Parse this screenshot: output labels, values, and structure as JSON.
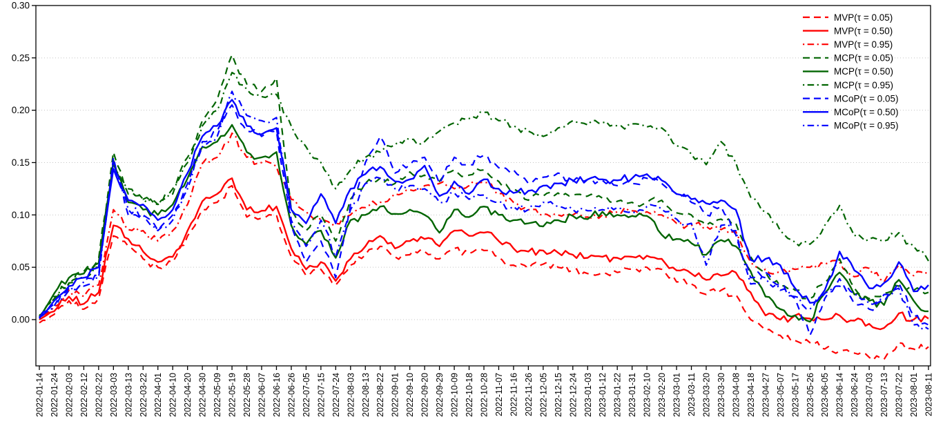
{
  "chart_data": {
    "type": "line",
    "title": "",
    "xlabel": "",
    "ylabel": "",
    "grid": "dotted-horizontal",
    "legend_position": "top-right",
    "ylim": [
      -0.045,
      0.3
    ],
    "y_ticks": [
      "0.00",
      "0.05",
      "0.10",
      "0.15",
      "0.20",
      "0.25",
      "0.30"
    ],
    "y_tick_values": [
      0.0,
      0.05,
      0.1,
      0.15,
      0.2,
      0.25,
      0.3
    ],
    "colors": {
      "mvp": "#FF0000",
      "mcp": "#006400",
      "mcop": "#0000FF",
      "grid": "#c3c3c3",
      "axis": "#000000"
    },
    "x_tick_labels": [
      "2022-01-14",
      "2022-01-24",
      "2022-02-03",
      "2022-02-12",
      "2022-02-22",
      "2022-03-03",
      "2022-03-13",
      "2022-03-22",
      "2022-04-01",
      "2022-04-10",
      "2022-04-20",
      "2022-04-30",
      "2022-05-09",
      "2022-05-19",
      "2022-05-28",
      "2022-06-07",
      "2022-06-16",
      "2022-06-26",
      "2022-07-05",
      "2022-07-15",
      "2022-07-24",
      "2022-08-03",
      "2022-08-13",
      "2022-08-22",
      "2022-09-01",
      "2022-09-10",
      "2022-09-20",
      "2022-09-29",
      "2022-10-09",
      "2022-10-18",
      "2022-10-28",
      "2022-11-07",
      "2022-11-16",
      "2022-11-26",
      "2022-12-05",
      "2022-12-15",
      "2022-12-24",
      "2023-01-03",
      "2023-01-12",
      "2023-01-22",
      "2023-01-31",
      "2023-02-10",
      "2023-02-20",
      "2023-03-01",
      "2023-03-11",
      "2023-03-20",
      "2023-03-30",
      "2023-04-08",
      "2023-04-18",
      "2023-04-27",
      "2023-05-07",
      "2023-05-17",
      "2023-05-26",
      "2023-06-05",
      "2023-06-14",
      "2023-06-24",
      "2023-07-03",
      "2023-07-13",
      "2023-07-22",
      "2023-08-01",
      "2023-08-11"
    ],
    "series": [
      {
        "name": "MVP-0.05",
        "label": "MVP(τ = 0.05)",
        "color": "#FF0000",
        "dash": "dashed",
        "values": [
          -0.003,
          0.005,
          0.018,
          0.01,
          0.02,
          0.08,
          0.07,
          0.058,
          0.05,
          0.055,
          0.08,
          0.105,
          0.112,
          0.128,
          0.098,
          0.097,
          0.1,
          0.06,
          0.042,
          0.048,
          0.033,
          0.052,
          0.062,
          0.07,
          0.06,
          0.062,
          0.065,
          0.058,
          0.068,
          0.063,
          0.066,
          0.06,
          0.052,
          0.049,
          0.053,
          0.05,
          0.047,
          0.044,
          0.045,
          0.045,
          0.048,
          0.05,
          0.048,
          0.036,
          0.034,
          0.024,
          0.028,
          0.024,
          0.0,
          -0.01,
          -0.015,
          -0.02,
          -0.022,
          -0.028,
          -0.03,
          -0.032,
          -0.036,
          -0.038,
          -0.022,
          -0.028,
          -0.026
        ]
      },
      {
        "name": "MVP-0.50",
        "label": "MVP(τ = 0.50)",
        "color": "#FF0000",
        "dash": "solid",
        "values": [
          0.0,
          0.008,
          0.022,
          0.015,
          0.026,
          0.09,
          0.077,
          0.065,
          0.055,
          0.06,
          0.085,
          0.113,
          0.12,
          0.135,
          0.105,
          0.104,
          0.108,
          0.068,
          0.048,
          0.055,
          0.037,
          0.058,
          0.07,
          0.08,
          0.068,
          0.075,
          0.077,
          0.07,
          0.085,
          0.08,
          0.083,
          0.075,
          0.068,
          0.065,
          0.066,
          0.064,
          0.062,
          0.059,
          0.06,
          0.059,
          0.06,
          0.061,
          0.058,
          0.047,
          0.044,
          0.038,
          0.042,
          0.045,
          0.026,
          0.004,
          0.0,
          0.004,
          0.001,
          0.0,
          0.004,
          -0.001,
          -0.004,
          -0.008,
          0.006,
          0.0,
          0.001
        ]
      },
      {
        "name": "MVP-0.95",
        "label": "MVP(τ = 0.95)",
        "color": "#FF0000",
        "dash": "dashdot",
        "values": [
          0.002,
          0.012,
          0.028,
          0.022,
          0.033,
          0.105,
          0.086,
          0.085,
          0.075,
          0.085,
          0.11,
          0.149,
          0.155,
          0.178,
          0.155,
          0.15,
          0.146,
          0.115,
          0.103,
          0.096,
          0.092,
          0.1,
          0.107,
          0.112,
          0.12,
          0.124,
          0.128,
          0.13,
          0.125,
          0.128,
          0.131,
          0.12,
          0.112,
          0.105,
          0.101,
          0.1,
          0.1,
          0.098,
          0.1,
          0.103,
          0.104,
          0.103,
          0.1,
          0.092,
          0.09,
          0.089,
          0.086,
          0.084,
          0.055,
          0.048,
          0.046,
          0.048,
          0.05,
          0.053,
          0.055,
          0.041,
          0.049,
          0.036,
          0.052,
          0.042,
          0.046
        ]
      },
      {
        "name": "MCP-0.05",
        "label": "MCP(τ = 0.05)",
        "color": "#006400",
        "dash": "dashed",
        "values": [
          0.003,
          0.022,
          0.035,
          0.046,
          0.058,
          0.16,
          0.12,
          0.115,
          0.11,
          0.125,
          0.155,
          0.19,
          0.21,
          0.253,
          0.225,
          0.218,
          0.231,
          0.105,
          0.085,
          0.1,
          0.075,
          0.115,
          0.13,
          0.135,
          0.13,
          0.141,
          0.138,
          0.132,
          0.143,
          0.138,
          0.143,
          0.132,
          0.125,
          0.114,
          0.118,
          0.121,
          0.119,
          0.118,
          0.116,
          0.113,
          0.112,
          0.112,
          0.114,
          0.102,
          0.1,
          0.09,
          0.096,
          0.092,
          0.06,
          0.045,
          0.032,
          0.028,
          0.02,
          0.035,
          0.058,
          0.03,
          0.02,
          0.025,
          0.032,
          0.028,
          0.026
        ]
      },
      {
        "name": "MCP-0.50",
        "label": "MCP(τ = 0.50)",
        "color": "#006400",
        "dash": "solid",
        "values": [
          0.002,
          0.025,
          0.04,
          0.044,
          0.054,
          0.152,
          0.112,
          0.105,
          0.1,
          0.11,
          0.135,
          0.165,
          0.17,
          0.186,
          0.16,
          0.155,
          0.16,
          0.09,
          0.072,
          0.085,
          0.059,
          0.095,
          0.1,
          0.108,
          0.101,
          0.105,
          0.1,
          0.083,
          0.105,
          0.098,
          0.108,
          0.1,
          0.095,
          0.092,
          0.089,
          0.095,
          0.099,
          0.096,
          0.103,
          0.1,
          0.099,
          0.099,
          0.081,
          0.077,
          0.073,
          0.062,
          0.076,
          0.07,
          0.046,
          0.022,
          0.01,
          0.004,
          -0.002,
          0.025,
          0.045,
          0.024,
          0.018,
          0.014,
          0.038,
          0.018,
          0.008
        ]
      },
      {
        "name": "MCP-0.95",
        "label": "MCP(τ = 0.95)",
        "color": "#006400",
        "dash": "dashdot",
        "values": [
          0.004,
          0.02,
          0.034,
          0.04,
          0.05,
          0.148,
          0.125,
          0.115,
          0.11,
          0.12,
          0.15,
          0.185,
          0.2,
          0.236,
          0.22,
          0.213,
          0.215,
          0.185,
          0.165,
          0.15,
          0.125,
          0.143,
          0.155,
          0.16,
          0.167,
          0.172,
          0.17,
          0.18,
          0.188,
          0.192,
          0.198,
          0.19,
          0.185,
          0.18,
          0.175,
          0.183,
          0.19,
          0.186,
          0.188,
          0.185,
          0.187,
          0.184,
          0.183,
          0.166,
          0.158,
          0.148,
          0.17,
          0.15,
          0.117,
          0.103,
          0.085,
          0.074,
          0.072,
          0.09,
          0.109,
          0.08,
          0.077,
          0.075,
          0.083,
          0.07,
          0.056
        ]
      },
      {
        "name": "MCoP-0.05",
        "label": "MCoP(τ = 0.05)",
        "color": "#0000FF",
        "dash": "dashed",
        "values": [
          0.002,
          0.015,
          0.03,
          0.032,
          0.042,
          0.155,
          0.1,
          0.1,
          0.085,
          0.1,
          0.13,
          0.17,
          0.18,
          0.205,
          0.18,
          0.175,
          0.18,
          0.09,
          0.055,
          0.075,
          0.04,
          0.11,
          0.15,
          0.175,
          0.14,
          0.148,
          0.155,
          0.13,
          0.155,
          0.148,
          0.157,
          0.145,
          0.143,
          0.13,
          0.136,
          0.14,
          0.132,
          0.134,
          0.133,
          0.128,
          0.13,
          0.135,
          0.13,
          0.12,
          0.112,
          0.1,
          0.108,
          0.081,
          0.04,
          0.045,
          0.033,
          0.02,
          -0.015,
          0.02,
          0.039,
          0.015,
          0.01,
          0.017,
          0.035,
          0.003,
          -0.005
        ]
      },
      {
        "name": "MCoP-0.50",
        "label": "MCoP(τ = 0.50)",
        "color": "#0000FF",
        "dash": "solid",
        "values": [
          0.002,
          0.018,
          0.032,
          0.04,
          0.05,
          0.144,
          0.114,
          0.11,
          0.095,
          0.105,
          0.14,
          0.175,
          0.185,
          0.21,
          0.185,
          0.177,
          0.183,
          0.105,
          0.092,
          0.12,
          0.092,
          0.125,
          0.139,
          0.146,
          0.132,
          0.134,
          0.147,
          0.118,
          0.132,
          0.12,
          0.134,
          0.125,
          0.121,
          0.123,
          0.128,
          0.13,
          0.133,
          0.134,
          0.134,
          0.133,
          0.135,
          0.139,
          0.133,
          0.12,
          0.115,
          0.111,
          0.114,
          0.105,
          0.057,
          0.058,
          0.052,
          0.03,
          0.016,
          0.028,
          0.065,
          0.047,
          0.03,
          0.035,
          0.055,
          0.027,
          0.033
        ]
      },
      {
        "name": "MCoP-0.95",
        "label": "MCoP(τ = 0.95)",
        "color": "#0000FF",
        "dash": "dashdot",
        "values": [
          0.001,
          0.013,
          0.028,
          0.036,
          0.04,
          0.15,
          0.105,
          0.1,
          0.085,
          0.095,
          0.125,
          0.165,
          0.175,
          0.218,
          0.195,
          0.19,
          0.193,
          0.095,
          0.07,
          0.095,
          0.06,
          0.105,
          0.13,
          0.135,
          0.125,
          0.128,
          0.125,
          0.112,
          0.121,
          0.115,
          0.119,
          0.112,
          0.108,
          0.105,
          0.112,
          0.108,
          0.105,
          0.104,
          0.105,
          0.107,
          0.103,
          0.108,
          0.105,
          0.096,
          0.092,
          0.052,
          0.09,
          0.085,
          0.034,
          0.04,
          0.028,
          0.022,
          0.01,
          0.025,
          0.032,
          0.025,
          0.015,
          0.024,
          0.03,
          -0.005,
          -0.009
        ]
      }
    ]
  }
}
